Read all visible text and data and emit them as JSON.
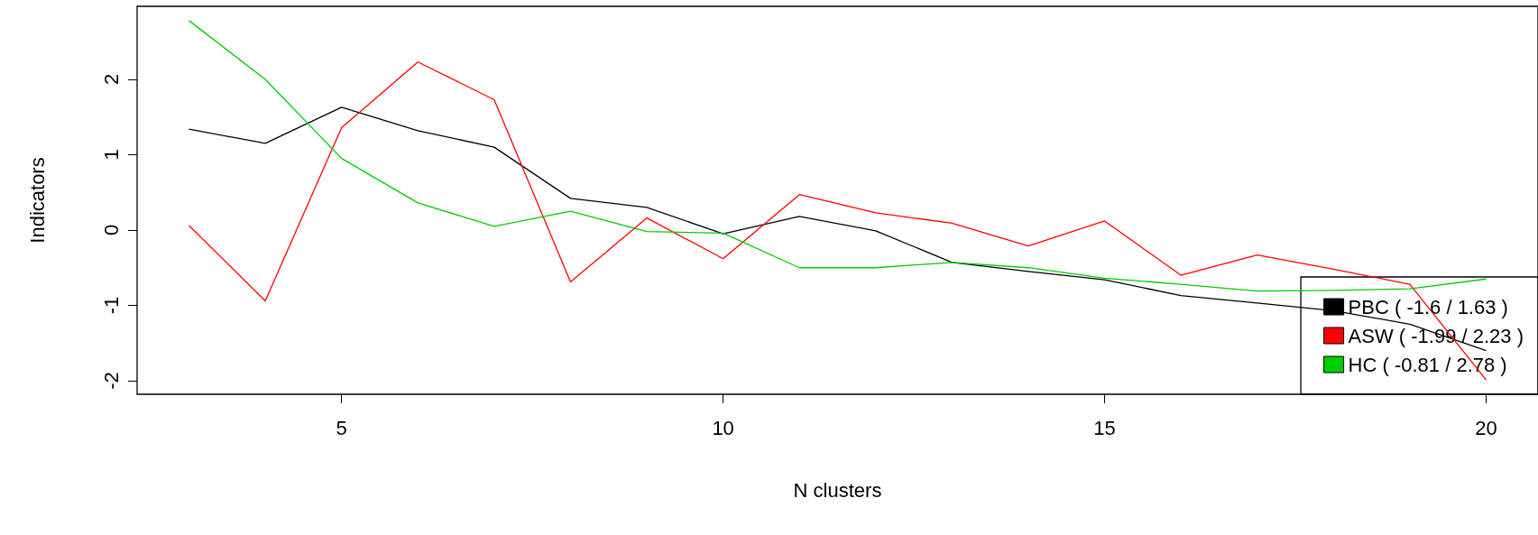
{
  "chart_data": {
    "type": "line",
    "xlabel": "N clusters",
    "ylabel": "Indicators",
    "x": [
      3,
      4,
      5,
      6,
      7,
      8,
      9,
      10,
      11,
      12,
      13,
      14,
      15,
      16,
      17,
      18,
      19,
      20
    ],
    "series": [
      {
        "name": "PBC ( -1.6 / 1.63 )",
        "color": "#000000",
        "values": [
          1.34,
          1.15,
          1.63,
          1.32,
          1.1,
          0.42,
          0.3,
          -0.05,
          0.18,
          -0.01,
          -0.43,
          -0.55,
          -0.66,
          -0.87,
          -0.97,
          -1.07,
          -1.25,
          -1.6
        ]
      },
      {
        "name": "ASW ( -1.99 / 2.23 )",
        "color": "#ff0000",
        "values": [
          0.06,
          -0.94,
          1.36,
          2.23,
          1.73,
          -0.69,
          0.16,
          -0.38,
          0.47,
          0.23,
          0.09,
          -0.21,
          0.12,
          -0.6,
          -0.33,
          -0.52,
          -0.72,
          -1.99
        ]
      },
      {
        "name": "HC ( -0.81 / 2.78 )",
        "color": "#00cd00",
        "values": [
          2.78,
          2.0,
          0.95,
          0.36,
          0.05,
          0.25,
          -0.02,
          -0.04,
          -0.5,
          -0.5,
          -0.43,
          -0.5,
          -0.64,
          -0.72,
          -0.81,
          -0.8,
          -0.78,
          -0.65
        ]
      }
    ],
    "xlim": [
      2.32,
      20.68
    ],
    "ylim": [
      -2.18,
      2.97
    ],
    "xticks": [
      5,
      10,
      15,
      20
    ],
    "yticks": [
      -2,
      -1,
      0,
      1,
      2
    ],
    "grid": false,
    "legend": "bottom right",
    "marker": "none",
    "line_style": "solid"
  }
}
